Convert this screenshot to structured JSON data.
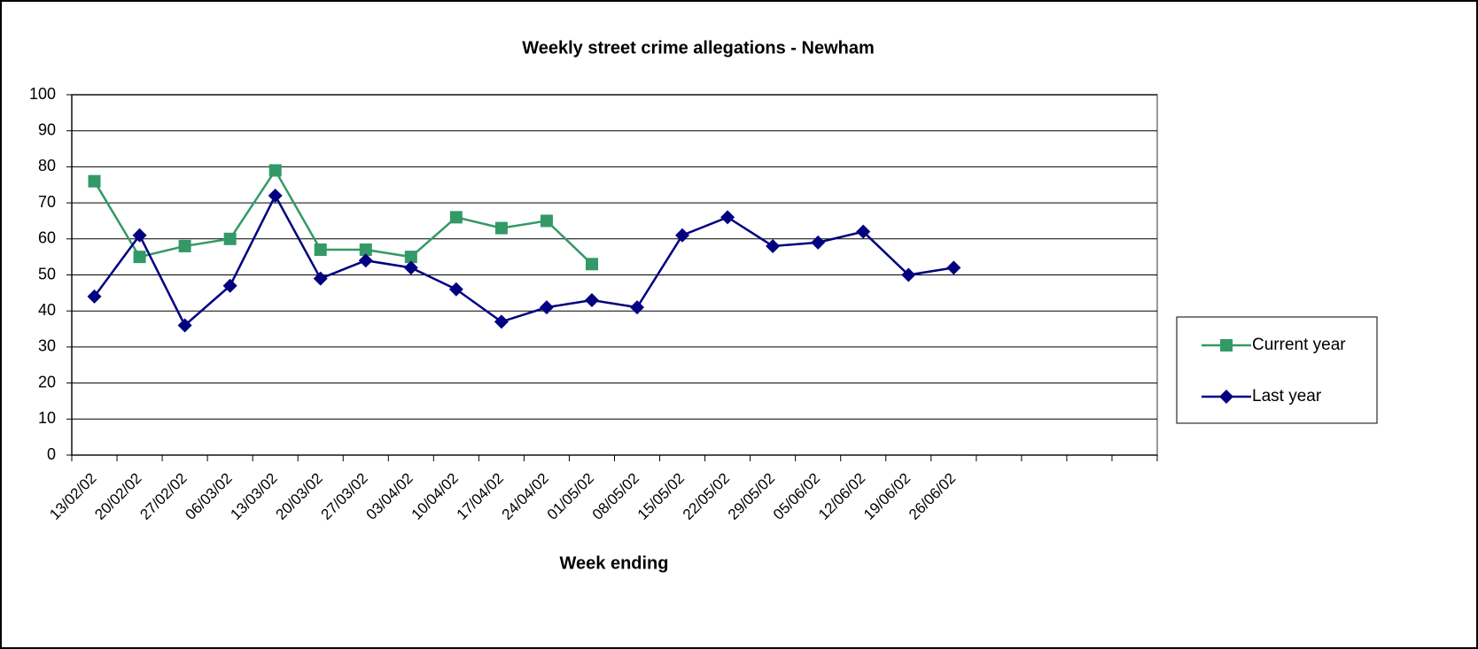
{
  "chart_data": {
    "type": "line",
    "title": "Weekly street crime allegations - Newham",
    "x_label": "Week ending",
    "categories": [
      "13/02/02",
      "20/02/02",
      "27/02/02",
      "06/03/02",
      "13/03/02",
      "20/03/02",
      "27/03/02",
      "03/04/02",
      "10/04/02",
      "17/04/02",
      "24/04/02",
      "01/05/02",
      "08/05/02",
      "15/05/02",
      "22/05/02",
      "29/05/02",
      "05/06/02",
      "12/06/02",
      "19/06/02",
      "26/06/02",
      null,
      null,
      null,
      null
    ],
    "series": [
      {
        "name": "Current year",
        "color": "#339966",
        "marker": "square",
        "values": [
          76,
          55,
          58,
          60,
          79,
          57,
          57,
          55,
          66,
          63,
          65,
          53,
          null,
          null,
          null,
          null,
          null,
          null,
          null,
          null,
          null,
          null,
          null,
          null
        ]
      },
      {
        "name": "Last year",
        "color": "#000080",
        "marker": "diamond",
        "values": [
          44,
          61,
          36,
          47,
          72,
          49,
          54,
          52,
          46,
          37,
          41,
          43,
          41,
          61,
          66,
          58,
          59,
          62,
          50,
          52,
          null,
          null,
          null,
          null
        ]
      }
    ],
    "ylim": [
      0,
      100
    ],
    "yticks": [
      0,
      10,
      20,
      30,
      40,
      50,
      60,
      70,
      80,
      90,
      100
    ],
    "grid": true,
    "legend": "right"
  }
}
